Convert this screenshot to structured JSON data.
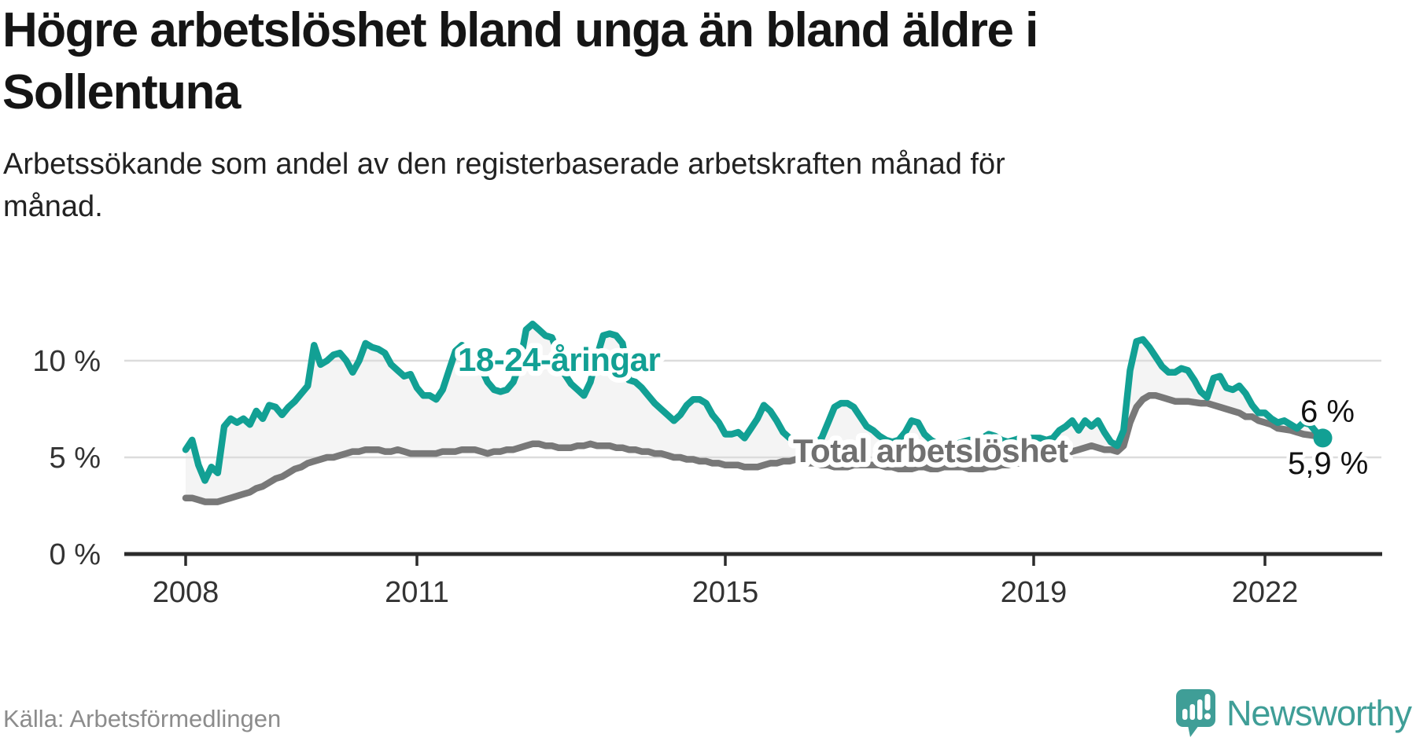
{
  "header": {
    "title": "Högre arbetslöshet bland unga än bland äldre i\nSollentuna",
    "subtitle": "Arbetssökande som andel av den registerbaserade arbetskraften månad för\nmånad."
  },
  "footer": {
    "source": "Källa: Arbetsförmedlingen",
    "brand": "Newsworthy",
    "logo_icon": "newsworthy-speech-bubble-bar-chart-icon"
  },
  "colors": {
    "youth_line": "#12a094",
    "total_line": "#787878",
    "band_fill": "#f4f4f4",
    "gridline": "#dcdcdc",
    "axis": "#2b2b2b",
    "tick_text": "#333333",
    "end_label_text": "#111111",
    "brand_teal": "#3f9e97",
    "source_text": "#8c8c8c"
  },
  "chart_data": {
    "type": "line",
    "x_unit": "month",
    "x_start": "2008-01",
    "x_end": "2022-10",
    "x_ticks": [
      2008,
      2011,
      2015,
      2019,
      2022
    ],
    "y_ticks": [
      {
        "label": "10 %",
        "value": 10
      },
      {
        "label": "5 %",
        "value": 5
      },
      {
        "label": "0 %",
        "value": 0
      }
    ],
    "ylim": [
      0,
      12.5
    ],
    "grid": "horizontal",
    "legend": "inline-series-labels",
    "end_labels": {
      "youth": "6 %",
      "total": "5,9 %"
    },
    "series": [
      {
        "name": "18-24-åringar",
        "color": "#12a094",
        "values": [
          5.4,
          5.9,
          4.6,
          3.8,
          4.5,
          4.2,
          6.6,
          7.0,
          6.8,
          7.0,
          6.7,
          7.4,
          7.0,
          7.7,
          7.6,
          7.2,
          7.6,
          7.9,
          8.3,
          8.7,
          10.8,
          9.8,
          10.0,
          10.3,
          10.4,
          10.0,
          9.4,
          10.0,
          10.9,
          10.7,
          10.6,
          10.4,
          9.8,
          9.5,
          9.2,
          9.3,
          8.6,
          8.2,
          8.2,
          8.0,
          8.5,
          9.5,
          10.5,
          10.8,
          10.3,
          9.9,
          9.6,
          8.9,
          8.5,
          8.4,
          8.5,
          8.9,
          9.8,
          11.6,
          11.9,
          11.6,
          11.3,
          11.2,
          10.4,
          9.3,
          8.8,
          8.5,
          8.2,
          8.9,
          10.2,
          11.3,
          11.4,
          11.3,
          10.9,
          9.0,
          8.9,
          8.6,
          8.2,
          7.8,
          7.5,
          7.2,
          6.9,
          7.2,
          7.7,
          8.0,
          8.0,
          7.8,
          7.2,
          6.8,
          6.2,
          6.2,
          6.3,
          6.0,
          6.5,
          7.0,
          7.7,
          7.4,
          6.9,
          6.3,
          6.0,
          5.8,
          5.6,
          5.6,
          5.7,
          6.0,
          6.8,
          7.6,
          7.8,
          7.8,
          7.6,
          7.1,
          6.6,
          6.4,
          6.1,
          5.9,
          5.8,
          5.9,
          6.3,
          6.9,
          6.8,
          6.2,
          5.9,
          5.7,
          5.6,
          5.6,
          5.7,
          5.8,
          5.9,
          5.8,
          6.0,
          6.2,
          6.1,
          5.9,
          5.8,
          5.9,
          6.0,
          6.0,
          6.0,
          6.0,
          5.9,
          6.0,
          6.4,
          6.6,
          6.9,
          6.4,
          6.9,
          6.6,
          6.9,
          6.3,
          5.8,
          5.6,
          6.4,
          9.5,
          11.0,
          11.1,
          10.7,
          10.2,
          9.7,
          9.4,
          9.4,
          9.6,
          9.5,
          9.0,
          8.4,
          8.1,
          9.1,
          9.2,
          8.6,
          8.5,
          8.7,
          8.3,
          7.7,
          7.3,
          7.3,
          7.0,
          6.8,
          6.9,
          6.7,
          6.5,
          6.8,
          6.7,
          6.3,
          6.0
        ]
      },
      {
        "name": "Total arbetslöshet",
        "color": "#787878",
        "values": [
          2.9,
          2.9,
          2.8,
          2.7,
          2.7,
          2.7,
          2.8,
          2.9,
          3.0,
          3.1,
          3.2,
          3.4,
          3.5,
          3.7,
          3.9,
          4.0,
          4.2,
          4.4,
          4.5,
          4.7,
          4.8,
          4.9,
          5.0,
          5.0,
          5.1,
          5.2,
          5.3,
          5.3,
          5.4,
          5.4,
          5.4,
          5.3,
          5.3,
          5.4,
          5.3,
          5.2,
          5.2,
          5.2,
          5.2,
          5.2,
          5.3,
          5.3,
          5.3,
          5.4,
          5.4,
          5.4,
          5.3,
          5.2,
          5.3,
          5.3,
          5.4,
          5.4,
          5.5,
          5.6,
          5.7,
          5.7,
          5.6,
          5.6,
          5.5,
          5.5,
          5.5,
          5.6,
          5.6,
          5.7,
          5.6,
          5.6,
          5.6,
          5.5,
          5.5,
          5.4,
          5.4,
          5.3,
          5.3,
          5.2,
          5.2,
          5.1,
          5.0,
          5.0,
          4.9,
          4.9,
          4.8,
          4.8,
          4.7,
          4.7,
          4.6,
          4.6,
          4.6,
          4.5,
          4.5,
          4.5,
          4.6,
          4.7,
          4.7,
          4.8,
          4.8,
          4.9,
          4.8,
          4.7,
          4.7,
          4.6,
          4.6,
          4.5,
          4.5,
          4.5,
          4.6,
          4.6,
          4.6,
          4.6,
          4.6,
          4.5,
          4.5,
          4.4,
          4.4,
          4.4,
          4.5,
          4.5,
          4.4,
          4.4,
          4.5,
          4.5,
          4.5,
          4.5,
          4.4,
          4.4,
          4.4,
          4.5,
          4.5,
          4.6,
          4.6,
          4.7,
          4.7,
          4.8,
          4.8,
          4.9,
          4.9,
          5.0,
          5.1,
          5.2,
          5.3,
          5.4,
          5.5,
          5.6,
          5.5,
          5.4,
          5.4,
          5.3,
          5.6,
          6.8,
          7.6,
          8.0,
          8.2,
          8.2,
          8.1,
          8.0,
          7.9,
          7.9,
          7.9,
          7.85,
          7.8,
          7.8,
          7.7,
          7.6,
          7.5,
          7.4,
          7.3,
          7.1,
          7.1,
          6.9,
          6.8,
          6.7,
          6.5,
          6.45,
          6.4,
          6.3,
          6.2,
          6.15,
          6.1,
          5.9
        ]
      }
    ]
  }
}
